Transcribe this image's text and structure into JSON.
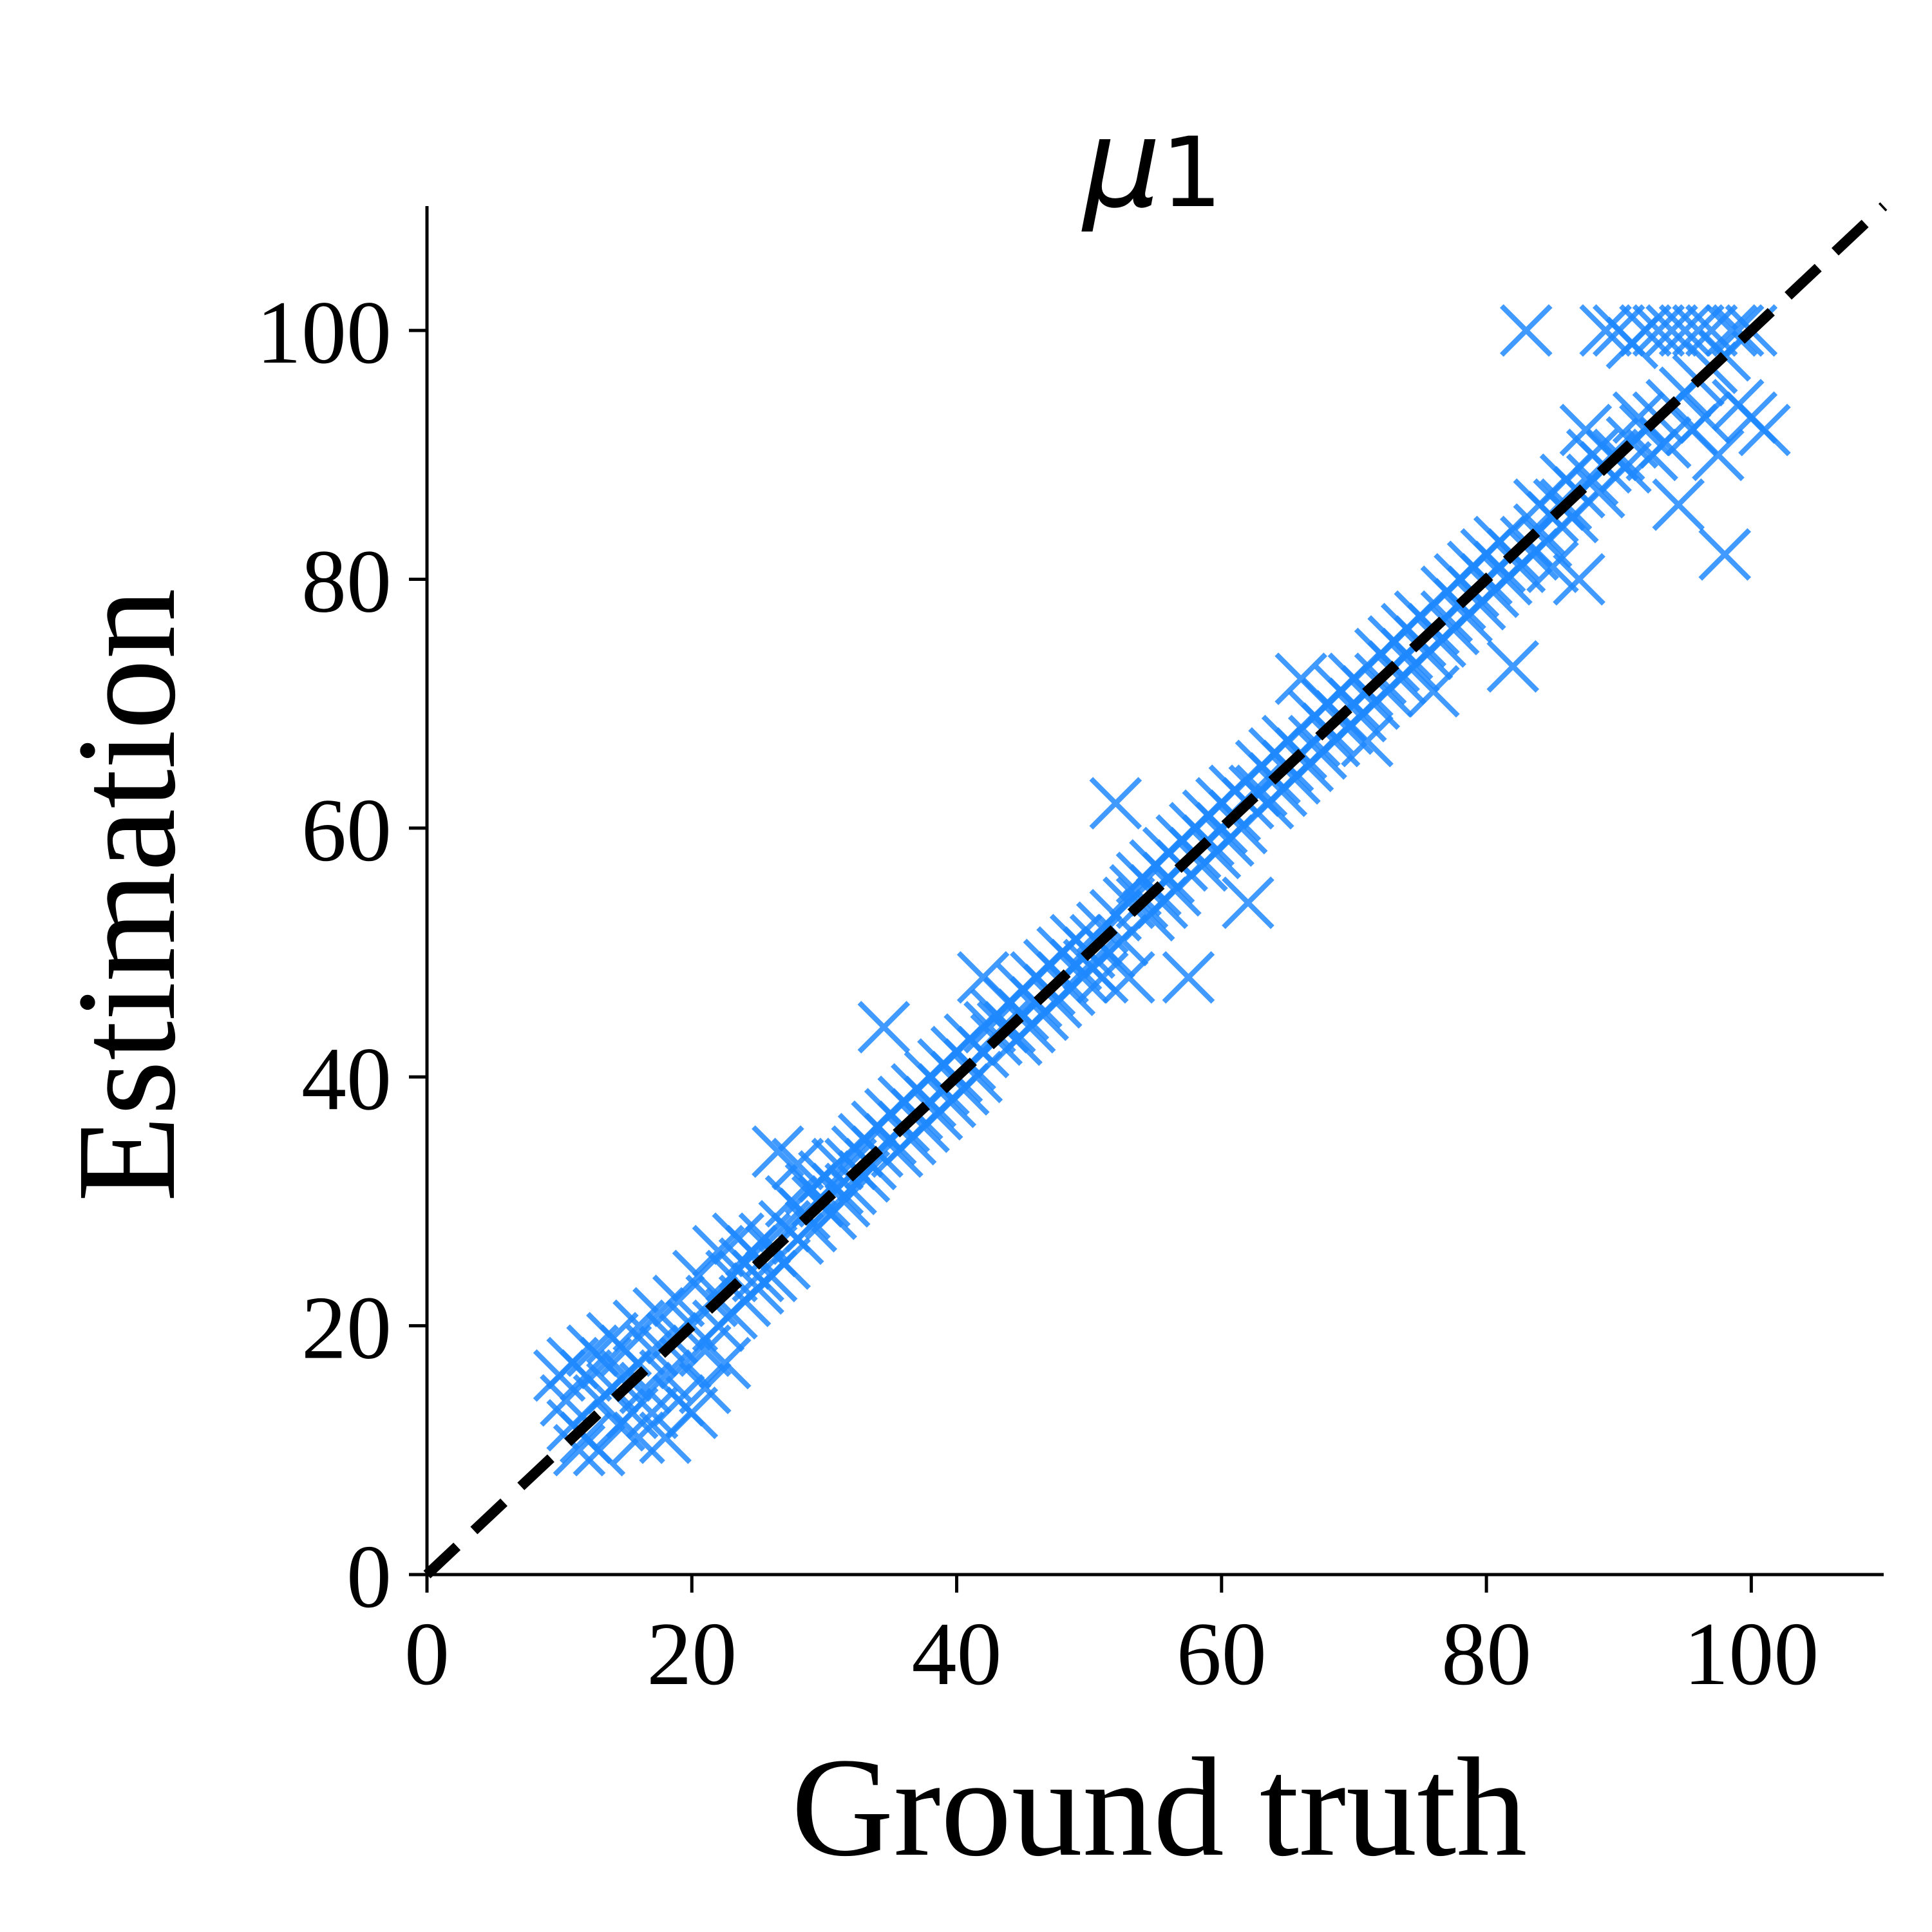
{
  "chart_data": {
    "type": "scatter",
    "title": "μ1",
    "title_main": "μ",
    "title_sub": "1",
    "xlabel": "Ground truth",
    "ylabel": "Estimation",
    "xlim": [
      0,
      110
    ],
    "ylim": [
      0,
      110
    ],
    "x_ticks": [
      "0",
      "20",
      "40",
      "60",
      "80",
      "100"
    ],
    "y_ticks": [
      "0",
      "20",
      "40",
      "60",
      "80",
      "100"
    ],
    "marker": "x",
    "marker_color": "#1E88FF",
    "reference_line": {
      "style": "dashed",
      "color": "#000000",
      "from": [
        0,
        0
      ],
      "to": [
        110,
        110
      ]
    },
    "grid": false,
    "series": [
      {
        "points": [
          [
            10,
            16
          ],
          [
            10.5,
            14
          ],
          [
            11,
            17
          ],
          [
            11,
            12
          ],
          [
            11.5,
            10
          ],
          [
            12,
            16
          ],
          [
            12,
            11
          ],
          [
            12.5,
            18
          ],
          [
            13,
            14
          ],
          [
            13,
            10
          ],
          [
            13.5,
            17
          ],
          [
            14,
            15
          ],
          [
            14,
            19
          ],
          [
            14.5,
            12
          ],
          [
            15,
            16
          ],
          [
            15,
            18
          ],
          [
            15.5,
            13
          ],
          [
            16,
            20
          ],
          [
            16,
            11
          ],
          [
            16.5,
            15
          ],
          [
            17,
            18
          ],
          [
            17,
            13
          ],
          [
            17.5,
            21
          ],
          [
            18,
            16
          ],
          [
            18,
            11
          ],
          [
            18.5,
            19
          ],
          [
            19,
            14
          ],
          [
            19,
            22
          ],
          [
            19.5,
            17
          ],
          [
            20,
            20
          ],
          [
            20,
            13
          ],
          [
            20.5,
            24
          ],
          [
            21,
            18
          ],
          [
            21,
            15
          ],
          [
            21.5,
            22
          ],
          [
            22,
            20
          ],
          [
            22,
            26
          ],
          [
            22.5,
            17
          ],
          [
            23,
            24
          ],
          [
            23,
            21
          ],
          [
            23.5,
            27
          ],
          [
            24,
            25
          ],
          [
            24,
            22
          ],
          [
            24.5,
            26
          ],
          [
            25,
            24
          ],
          [
            25,
            23
          ],
          [
            25.5,
            27
          ],
          [
            26,
            26
          ],
          [
            26,
            24
          ],
          [
            26.5,
            34
          ],
          [
            27,
            28
          ],
          [
            27,
            25
          ],
          [
            27.5,
            30
          ],
          [
            28,
            27
          ],
          [
            28,
            33
          ],
          [
            28.5,
            29
          ],
          [
            29,
            31
          ],
          [
            29,
            28
          ],
          [
            29.5,
            30
          ],
          [
            30,
            30
          ],
          [
            30,
            32
          ],
          [
            30.5,
            29
          ],
          [
            31,
            31
          ],
          [
            31,
            33
          ],
          [
            31.5,
            30
          ],
          [
            32,
            33
          ],
          [
            32,
            31
          ],
          [
            32.5,
            34
          ],
          [
            33,
            32
          ],
          [
            33,
            35
          ],
          [
            33.5,
            33
          ],
          [
            34,
            34
          ],
          [
            34,
            36
          ],
          [
            34.5,
            44
          ],
          [
            35,
            35
          ],
          [
            35,
            37
          ],
          [
            35.5,
            34
          ],
          [
            36,
            36
          ],
          [
            36,
            38
          ],
          [
            36.5,
            35
          ],
          [
            37,
            37
          ],
          [
            37,
            39
          ],
          [
            37.5,
            36
          ],
          [
            38,
            38
          ],
          [
            38,
            40
          ],
          [
            38.5,
            37
          ],
          [
            39,
            39
          ],
          [
            39,
            41
          ],
          [
            39.5,
            38
          ],
          [
            40,
            40
          ],
          [
            40,
            42
          ],
          [
            40.5,
            39
          ],
          [
            41,
            41
          ],
          [
            41,
            43
          ],
          [
            41.5,
            40
          ],
          [
            42,
            42
          ],
          [
            42,
            48
          ],
          [
            42.5,
            44
          ],
          [
            43,
            43
          ],
          [
            43,
            45
          ],
          [
            43.5,
            44
          ],
          [
            44,
            44
          ],
          [
            44,
            46
          ],
          [
            44.5,
            43
          ],
          [
            45,
            45
          ],
          [
            45,
            47
          ],
          [
            45.5,
            44
          ],
          [
            46,
            46
          ],
          [
            46,
            48
          ],
          [
            46.5,
            45
          ],
          [
            47,
            47
          ],
          [
            47,
            49
          ],
          [
            47.5,
            46
          ],
          [
            48,
            48
          ],
          [
            48,
            50
          ],
          [
            48.5,
            47
          ],
          [
            49,
            49
          ],
          [
            49,
            51
          ],
          [
            49.5,
            48
          ],
          [
            50,
            50
          ],
          [
            50,
            49
          ],
          [
            50.5,
            51
          ],
          [
            51,
            52
          ],
          [
            51,
            48
          ],
          [
            51.5,
            50
          ],
          [
            52,
            62
          ],
          [
            52,
            53
          ],
          [
            52.5,
            51
          ],
          [
            53,
            54
          ],
          [
            53,
            48
          ],
          [
            53.5,
            55
          ],
          [
            54,
            54
          ],
          [
            54,
            56
          ],
          [
            54.5,
            53
          ],
          [
            55,
            55
          ],
          [
            55,
            57
          ],
          [
            55.5,
            54
          ],
          [
            56,
            56
          ],
          [
            56,
            58
          ],
          [
            56.5,
            55
          ],
          [
            57,
            57
          ],
          [
            57,
            59
          ],
          [
            57.5,
            48
          ],
          [
            58,
            58
          ],
          [
            58,
            60
          ],
          [
            58.5,
            57
          ],
          [
            59,
            59
          ],
          [
            59,
            61
          ],
          [
            59.5,
            58
          ],
          [
            60,
            60
          ],
          [
            60,
            62
          ],
          [
            60.5,
            59
          ],
          [
            61,
            61
          ],
          [
            61,
            63
          ],
          [
            61.5,
            60
          ],
          [
            62,
            62
          ],
          [
            62,
            54
          ],
          [
            62.5,
            63
          ],
          [
            63,
            63
          ],
          [
            63,
            65
          ],
          [
            63.5,
            62
          ],
          [
            64,
            64
          ],
          [
            64,
            66
          ],
          [
            64.5,
            63
          ],
          [
            65,
            65
          ],
          [
            65,
            67
          ],
          [
            65.5,
            64
          ],
          [
            66,
            66
          ],
          [
            66,
            72
          ],
          [
            66.5,
            65
          ],
          [
            67,
            67
          ],
          [
            67,
            69
          ],
          [
            67.5,
            66
          ],
          [
            68,
            68
          ],
          [
            68,
            70
          ],
          [
            68.5,
            67
          ],
          [
            69,
            69
          ],
          [
            69,
            71
          ],
          [
            69.5,
            68
          ],
          [
            70,
            70
          ],
          [
            70,
            72
          ],
          [
            70.5,
            69
          ],
          [
            71,
            71
          ],
          [
            71,
            67
          ],
          [
            71.5,
            70
          ],
          [
            72,
            72
          ],
          [
            72,
            74
          ],
          [
            72.5,
            71
          ],
          [
            73,
            73
          ],
          [
            73,
            75
          ],
          [
            73.5,
            72
          ],
          [
            74,
            74
          ],
          [
            74,
            76
          ],
          [
            74.5,
            73
          ],
          [
            75,
            75
          ],
          [
            75,
            77
          ],
          [
            75.5,
            74
          ],
          [
            76,
            76
          ],
          [
            76,
            71
          ],
          [
            76.5,
            75
          ],
          [
            77,
            77
          ],
          [
            77,
            79
          ],
          [
            77.5,
            76
          ],
          [
            78,
            78
          ],
          [
            78,
            80
          ],
          [
            78.5,
            77
          ],
          [
            79,
            79
          ],
          [
            79,
            81
          ],
          [
            79.5,
            78
          ],
          [
            80,
            80
          ],
          [
            80,
            82
          ],
          [
            80.5,
            79
          ],
          [
            81,
            81
          ],
          [
            81,
            83
          ],
          [
            81.5,
            80
          ],
          [
            82,
            82
          ],
          [
            82,
            73
          ],
          [
            82.5,
            81
          ],
          [
            83,
            100
          ],
          [
            83,
            83
          ],
          [
            83.5,
            82
          ],
          [
            84,
            84
          ],
          [
            84,
            86
          ],
          [
            84.5,
            83
          ],
          [
            85,
            85
          ],
          [
            85,
            81
          ],
          [
            85.5,
            86
          ],
          [
            86,
            86
          ],
          [
            86,
            88
          ],
          [
            86.5,
            85
          ],
          [
            87,
            87
          ],
          [
            87,
            80
          ],
          [
            87.5,
            92
          ],
          [
            88,
            88
          ],
          [
            88,
            90
          ],
          [
            88.5,
            87
          ],
          [
            89,
            100
          ],
          [
            89,
            89
          ],
          [
            89.5,
            90
          ],
          [
            90,
            90
          ],
          [
            90,
            100
          ],
          [
            90.5,
            89
          ],
          [
            91,
            91
          ],
          [
            91,
            99
          ],
          [
            91.5,
            93
          ],
          [
            92,
            92
          ],
          [
            92,
            100
          ],
          [
            92.5,
            90
          ],
          [
            93,
            93
          ],
          [
            93,
            100
          ],
          [
            93.5,
            91
          ],
          [
            94,
            94
          ],
          [
            94,
            100
          ],
          [
            94.5,
            86
          ],
          [
            95,
            95
          ],
          [
            95,
            100
          ],
          [
            95.5,
            92
          ],
          [
            96,
            96
          ],
          [
            96,
            100
          ],
          [
            96.5,
            93
          ],
          [
            97,
            97
          ],
          [
            97,
            100
          ],
          [
            97.5,
            90
          ],
          [
            98,
            98
          ],
          [
            98,
            82
          ],
          [
            98.5,
            100
          ],
          [
            99,
            94
          ],
          [
            99,
            100
          ],
          [
            100,
            93
          ],
          [
            100,
            100
          ],
          [
            101,
            92
          ]
        ]
      }
    ]
  }
}
